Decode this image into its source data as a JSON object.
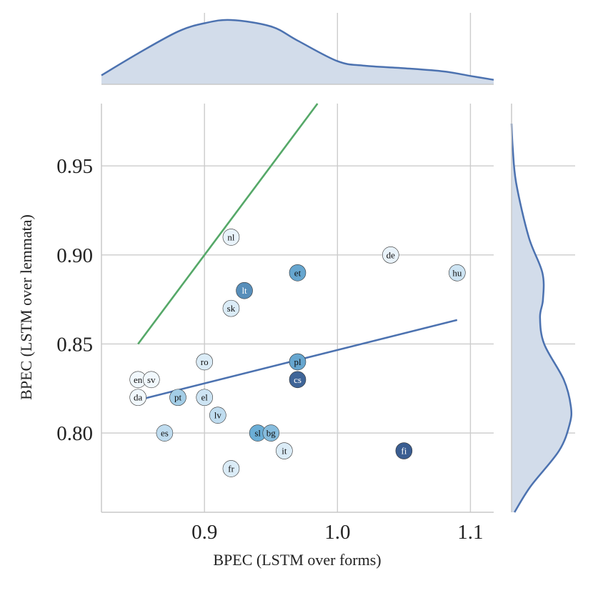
{
  "chart_data": {
    "type": "scatter",
    "title": "",
    "xlabel": "BPEC (LSTM over forms)",
    "ylabel": "BPEC (LSTM over lemmata)",
    "xlim": [
      0.8225,
      1.1175
    ],
    "ylim": [
      0.7555,
      0.985
    ],
    "xticks": [
      0.9,
      1.0,
      1.1
    ],
    "yticks": [
      0.8,
      0.85,
      0.9,
      0.95
    ],
    "xtick_labels": [
      "0.9",
      "1.0",
      "1.1"
    ],
    "ytick_labels": [
      "0.80",
      "0.85",
      "0.90",
      "0.95"
    ],
    "grid": true,
    "points": [
      {
        "label": "nl",
        "x": 0.92,
        "y": 0.91,
        "shade": 0.05
      },
      {
        "label": "de",
        "x": 1.04,
        "y": 0.9,
        "shade": 0.05
      },
      {
        "label": "et",
        "x": 0.97,
        "y": 0.89,
        "shade": 0.55
      },
      {
        "label": "hu",
        "x": 1.09,
        "y": 0.89,
        "shade": 0.15
      },
      {
        "label": "lt",
        "x": 0.93,
        "y": 0.88,
        "shade": 0.7
      },
      {
        "label": "sk",
        "x": 0.92,
        "y": 0.87,
        "shade": 0.1
      },
      {
        "label": "ro",
        "x": 0.9,
        "y": 0.84,
        "shade": 0.1
      },
      {
        "label": "pl",
        "x": 0.97,
        "y": 0.84,
        "shade": 0.55
      },
      {
        "label": "en",
        "x": 0.85,
        "y": 0.83,
        "shade": 0.02
      },
      {
        "label": "sv",
        "x": 0.86,
        "y": 0.83,
        "shade": 0.02
      },
      {
        "label": "cs",
        "x": 0.97,
        "y": 0.83,
        "shade": 0.95
      },
      {
        "label": "da",
        "x": 0.85,
        "y": 0.82,
        "shade": 0.02
      },
      {
        "label": "pt",
        "x": 0.88,
        "y": 0.82,
        "shade": 0.3
      },
      {
        "label": "el",
        "x": 0.9,
        "y": 0.82,
        "shade": 0.15
      },
      {
        "label": "lv",
        "x": 0.91,
        "y": 0.81,
        "shade": 0.2
      },
      {
        "label": "es",
        "x": 0.87,
        "y": 0.8,
        "shade": 0.2
      },
      {
        "label": "sl",
        "x": 0.94,
        "y": 0.8,
        "shade": 0.5
      },
      {
        "label": "bg",
        "x": 0.95,
        "y": 0.8,
        "shade": 0.4
      },
      {
        "label": "it",
        "x": 0.96,
        "y": 0.79,
        "shade": 0.1
      },
      {
        "label": "fi",
        "x": 1.05,
        "y": 0.79,
        "shade": 1.0
      },
      {
        "label": "fr",
        "x": 0.92,
        "y": 0.78,
        "shade": 0.1
      }
    ],
    "lines": [
      {
        "name": "identity",
        "color": "#55a868",
        "x": [
          0.85,
          0.985
        ],
        "y": [
          0.85,
          0.985
        ]
      },
      {
        "name": "regression",
        "color": "#4c72b0",
        "x": [
          0.85,
          1.09
        ],
        "y": [
          0.8185,
          0.8635
        ]
      }
    ],
    "marginal_x": {
      "type": "kde",
      "x": [
        0.8225,
        0.85,
        0.88,
        0.9,
        0.92,
        0.95,
        0.97,
        1.0,
        1.02,
        1.05,
        1.08,
        1.1,
        1.1175
      ],
      "density": [
        0.14,
        0.48,
        0.82,
        0.95,
        1.0,
        0.9,
        0.68,
        0.36,
        0.29,
        0.25,
        0.2,
        0.13,
        0.07
      ]
    },
    "marginal_y": {
      "type": "kde",
      "y": [
        0.7555,
        0.77,
        0.79,
        0.805,
        0.815,
        0.83,
        0.85,
        0.865,
        0.875,
        0.89,
        0.91,
        0.94,
        0.96,
        0.975
      ],
      "density": [
        0.05,
        0.32,
        0.8,
        0.98,
        1.0,
        0.88,
        0.55,
        0.48,
        0.53,
        0.52,
        0.29,
        0.08,
        0.02,
        0.0
      ]
    },
    "colors": {
      "kde_line": "#4c72b0",
      "kde_fill": "#d2dcea",
      "point_light": "#f7fbff",
      "point_dark": "#3a5d91"
    }
  }
}
